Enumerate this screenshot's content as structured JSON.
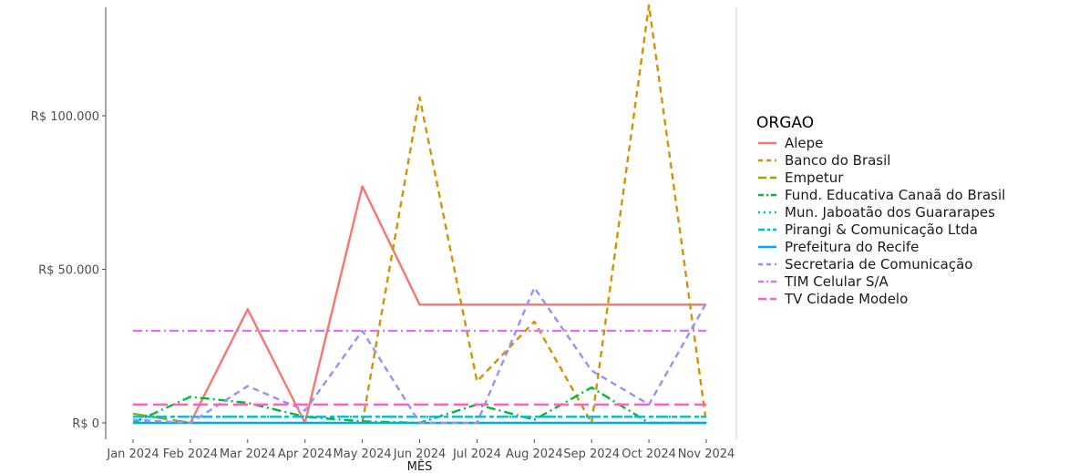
{
  "chart_data": {
    "type": "line",
    "xlabel": "MÊS",
    "ylabel": "",
    "ylim": [
      -3000,
      136000
    ],
    "grid": false,
    "legend_position": "right",
    "legend_title": "ORGAO",
    "categories": [
      "Jan 2024",
      "Feb 2024",
      "Mar 2024",
      "Apr 2024",
      "May 2024",
      "Jun 2024",
      "Jul 2024",
      "Aug 2024",
      "Sep 2024",
      "Oct 2024",
      "Nov 2024"
    ],
    "y_ticks": [
      {
        "value": 0,
        "label": "R$ 0"
      },
      {
        "value": 50000,
        "label": "R$ 50.000"
      },
      {
        "value": 100000,
        "label": "R$ 100.000"
      }
    ],
    "series": [
      {
        "name": "Alepe",
        "color": "#F8766D",
        "dash": "solid",
        "values": [
          null,
          0,
          37000,
          0,
          77000,
          38500,
          38500,
          38500,
          38500,
          38500,
          38500
        ]
      },
      {
        "name": "Banco do Brasil",
        "color": "#D39200",
        "dash": "dashed",
        "values": [
          null,
          null,
          null,
          null,
          0,
          106000,
          13500,
          33000,
          0,
          136000,
          0
        ]
      },
      {
        "name": "Empetur",
        "color": "#93AA00",
        "dash": "longdash",
        "values": [
          3000,
          0,
          null,
          null,
          null,
          null,
          null,
          null,
          null,
          null,
          null
        ]
      },
      {
        "name": "Fund. Educativa Canaã do Brasil",
        "color": "#00BA38",
        "dash": "dashdot",
        "values": [
          0,
          8500,
          6500,
          2000,
          500,
          0,
          6000,
          1000,
          11500,
          0,
          0
        ]
      },
      {
        "name": "Mun. Jaboatão dos Guararapes",
        "color": "#00C19F",
        "dash": "dotted",
        "values": [
          2000,
          2000,
          2000,
          2000,
          2000,
          2000,
          2000,
          2000,
          2000,
          2000,
          2000
        ]
      },
      {
        "name": "Pirangi & Comunicação Ltda",
        "color": "#00B9E3",
        "dash": "twodash",
        "values": [
          2000,
          2000,
          2000,
          2000,
          2000,
          2000,
          2000,
          2000,
          2000,
          2000,
          2000
        ]
      },
      {
        "name": "Prefeitura do Recife",
        "color": "#00A5FF",
        "dash": "solid",
        "values": [
          0,
          0,
          0,
          0,
          0,
          0,
          0,
          0,
          0,
          0,
          0
        ]
      },
      {
        "name": "Secretaria de Comunicação",
        "color": "#9590FF",
        "dash": "dashed",
        "values": [
          1000,
          0,
          12000,
          4000,
          30000,
          0,
          0,
          44000,
          17000,
          6000,
          39000
        ]
      },
      {
        "name": "TIM Celular S/A",
        "color": "#DB72FB",
        "dash": "dashdot",
        "values": [
          30000,
          30000,
          30000,
          30000,
          30000,
          30000,
          30000,
          30000,
          30000,
          30000,
          30000
        ]
      },
      {
        "name": "TV Cidade Modelo",
        "color": "#FF61C3",
        "dash": "longdash",
        "values": [
          6000,
          6000,
          6000,
          6000,
          6000,
          6000,
          6000,
          6000,
          6000,
          6000,
          6000
        ]
      }
    ]
  }
}
